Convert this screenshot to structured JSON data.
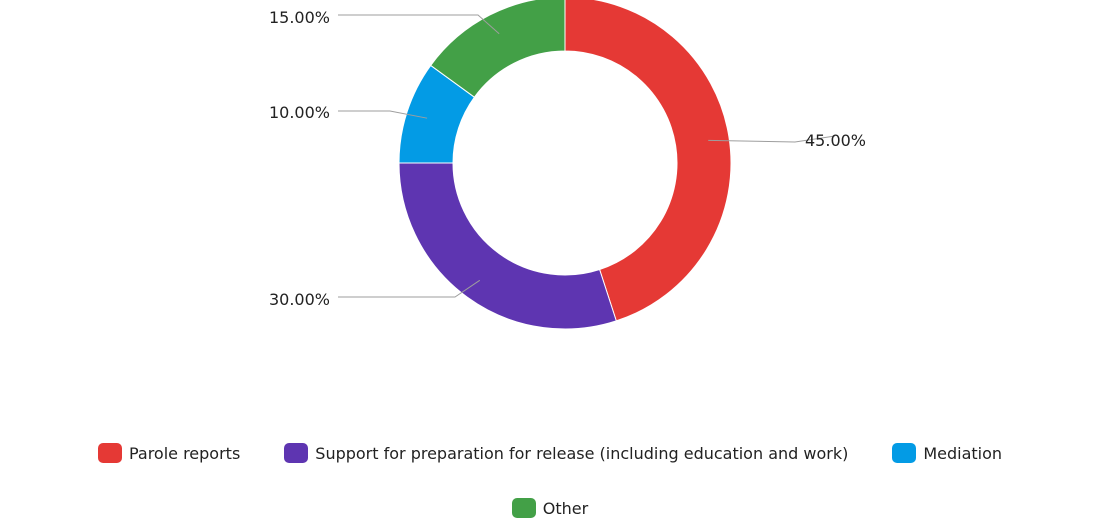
{
  "chart_data": {
    "type": "pie",
    "style": "donut",
    "categories": [
      "Parole reports",
      "Support for preparation for release (including education and work)",
      "Mediation",
      "Other"
    ],
    "values": [
      45.0,
      30.0,
      10.0,
      15.0
    ],
    "data_labels": [
      "45.00%",
      "30.00%",
      "10.00%",
      "15.00%"
    ],
    "colors": [
      "#e53935",
      "#5e35b1",
      "#039be5",
      "#43a047"
    ],
    "legend_position": "bottom",
    "title": "",
    "unit": "%"
  },
  "legend": {
    "items": [
      {
        "label": "Parole reports",
        "color": "#e53935"
      },
      {
        "label": "Support for preparation for release (including education and work)",
        "color": "#5e35b1"
      },
      {
        "label": "Mediation",
        "color": "#039be5"
      },
      {
        "label": "Other",
        "color": "#43a047"
      }
    ]
  }
}
